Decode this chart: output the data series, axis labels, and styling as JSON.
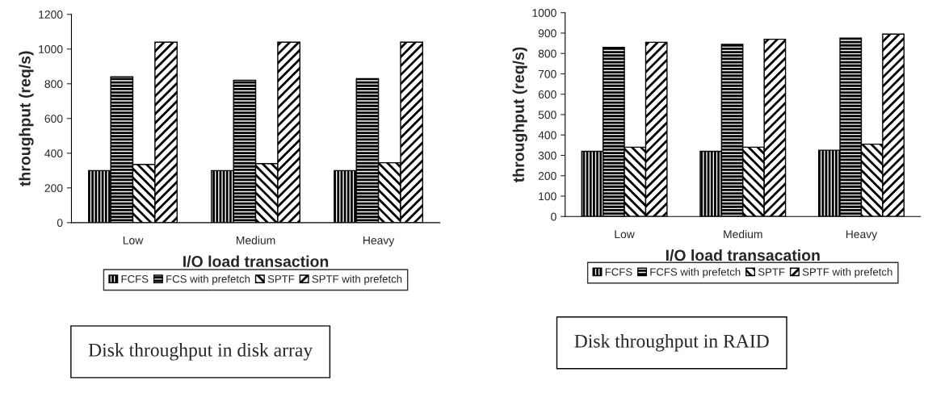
{
  "chart_data": [
    {
      "type": "bar",
      "categories": [
        "Low",
        "Medium",
        "Heavy"
      ],
      "xlabel": "I/O load transaction",
      "ylabel": "throughput (req/s)",
      "ylim": [
        0,
        1200
      ],
      "yticks": [
        0,
        200,
        400,
        600,
        800,
        1000,
        1200
      ],
      "grid": false,
      "legend": "bottom",
      "series": [
        {
          "name": "FCFS",
          "color": "#000000",
          "values": [
            300,
            300,
            300
          ]
        },
        {
          "name": "FCS with prefetch",
          "color": "#000000",
          "values": [
            840,
            820,
            830
          ]
        },
        {
          "name": "SPTF",
          "color": "#000000",
          "values": [
            335,
            340,
            345
          ]
        },
        {
          "name": "SPTF with prefetch",
          "color": "#000000",
          "values": [
            1040,
            1040,
            1040
          ]
        }
      ],
      "annotations": [
        "Disk throughput in disk array"
      ]
    },
    {
      "type": "bar",
      "categories": [
        "Low",
        "Medium",
        "Heavy"
      ],
      "xlabel": "I/O load transacation",
      "ylabel": "throughput (req/s)",
      "ylim": [
        0,
        1000
      ],
      "yticks": [
        0,
        100,
        200,
        300,
        400,
        500,
        600,
        700,
        800,
        900,
        1000
      ],
      "grid": false,
      "legend": "bottom",
      "series": [
        {
          "name": "FCFS",
          "color": "#000000",
          "values": [
            320,
            320,
            325
          ]
        },
        {
          "name": "FCFS with prefetch",
          "color": "#000000",
          "values": [
            830,
            845,
            875
          ]
        },
        {
          "name": "SPTF",
          "color": "#000000",
          "values": [
            340,
            340,
            355
          ]
        },
        {
          "name": "SPTF with prefetch",
          "color": "#000000",
          "values": [
            855,
            870,
            895
          ]
        }
      ],
      "annotations": [
        "Disk throughput in RAID"
      ]
    }
  ]
}
